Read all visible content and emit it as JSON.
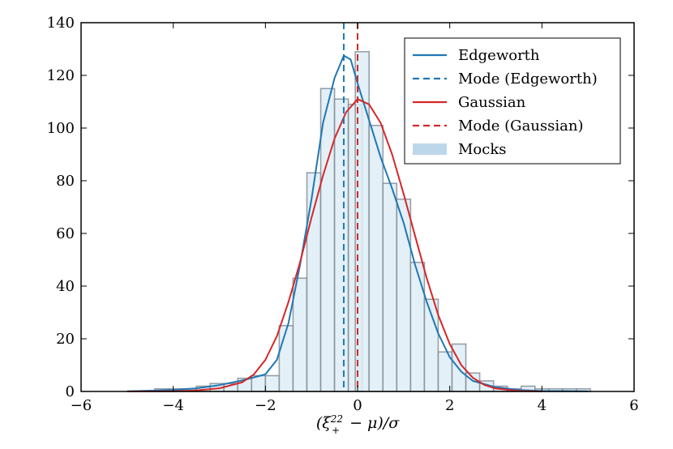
{
  "chart_data": {
    "type": "histogram",
    "title": "",
    "xlabel": "(ξ",
    "xlabel_sup": "22",
    "xlabel_sub": "+",
    "xlabel_tail": " − μ)/σ",
    "ylabel": "",
    "xlim": [
      -6,
      6
    ],
    "ylim": [
      0,
      140
    ],
    "xticks": [
      -6,
      -4,
      -2,
      0,
      2,
      4,
      6
    ],
    "xtick_labels": [
      "−6",
      "−4",
      "−2",
      "0",
      "2",
      "4",
      "6"
    ],
    "yticks": [
      0,
      20,
      40,
      60,
      80,
      100,
      120,
      140
    ],
    "ytick_labels": [
      "0",
      "20",
      "40",
      "60",
      "80",
      "100",
      "120",
      "140"
    ],
    "bin_width": 0.3,
    "bins": [
      {
        "x0": -4.4,
        "count": 1
      },
      {
        "x0": -4.1,
        "count": 1
      },
      {
        "x0": -3.8,
        "count": 1
      },
      {
        "x0": -3.5,
        "count": 2
      },
      {
        "x0": -3.2,
        "count": 3
      },
      {
        "x0": -2.9,
        "count": 3
      },
      {
        "x0": -2.6,
        "count": 5
      },
      {
        "x0": -2.3,
        "count": 6
      },
      {
        "x0": -2.0,
        "count": 6
      },
      {
        "x0": -1.7,
        "count": 25
      },
      {
        "x0": -1.4,
        "count": 43
      },
      {
        "x0": -1.1,
        "count": 83
      },
      {
        "x0": -0.8,
        "count": 115
      },
      {
        "x0": -0.5,
        "count": 111
      },
      {
        "x0": -0.2,
        "count": 109
      },
      {
        "x0": -0.05,
        "count": 129
      },
      {
        "x0": 0.25,
        "count": 101
      },
      {
        "x0": 0.55,
        "count": 79
      },
      {
        "x0": 0.85,
        "count": 73
      },
      {
        "x0": 1.15,
        "count": 49
      },
      {
        "x0": 1.45,
        "count": 35
      },
      {
        "x0": 1.75,
        "count": 15
      },
      {
        "x0": 2.05,
        "count": 18
      },
      {
        "x0": 2.35,
        "count": 7
      },
      {
        "x0": 2.65,
        "count": 4
      },
      {
        "x0": 2.95,
        "count": 2
      },
      {
        "x0": 3.25,
        "count": 1
      },
      {
        "x0": 3.55,
        "count": 2
      },
      {
        "x0": 3.85,
        "count": 1
      },
      {
        "x0": 4.15,
        "count": 1
      },
      {
        "x0": 4.45,
        "count": 1
      },
      {
        "x0": 4.75,
        "count": 1
      }
    ],
    "series": [
      {
        "name": "Edgeworth",
        "style": "solid",
        "color": "#1f77b4",
        "points": [
          [
            -5,
            0.1
          ],
          [
            -4.5,
            0.3
          ],
          [
            -4,
            0.6
          ],
          [
            -3.5,
            1.2
          ],
          [
            -3,
            2.4
          ],
          [
            -2.5,
            4.2
          ],
          [
            -2,
            6.5
          ],
          [
            -1.75,
            12
          ],
          [
            -1.5,
            26
          ],
          [
            -1.25,
            48
          ],
          [
            -1,
            73
          ],
          [
            -0.75,
            102
          ],
          [
            -0.5,
            119
          ],
          [
            -0.3,
            127.5
          ],
          [
            -0.15,
            126
          ],
          [
            0,
            117
          ],
          [
            0.25,
            103
          ],
          [
            0.5,
            89
          ],
          [
            0.75,
            77
          ],
          [
            1,
            64
          ],
          [
            1.25,
            48
          ],
          [
            1.5,
            34
          ],
          [
            1.75,
            22
          ],
          [
            2,
            13
          ],
          [
            2.25,
            7.5
          ],
          [
            2.5,
            4
          ],
          [
            3,
            1.6
          ],
          [
            3.5,
            0.6
          ],
          [
            4,
            0.2
          ],
          [
            5,
            0.05
          ]
        ]
      },
      {
        "name": "Mode (Edgeworth)",
        "style": "dashed",
        "color": "#1f77b4",
        "x": -0.3
      },
      {
        "name": "Gaussian",
        "style": "solid",
        "color": "#d62728",
        "points": [
          [
            -5,
            0
          ],
          [
            -4,
            0.1
          ],
          [
            -3.5,
            0.4
          ],
          [
            -3,
            1.2
          ],
          [
            -2.5,
            3.5
          ],
          [
            -2.25,
            6.5
          ],
          [
            -2,
            12
          ],
          [
            -1.75,
            21
          ],
          [
            -1.5,
            34
          ],
          [
            -1.25,
            49
          ],
          [
            -1,
            66
          ],
          [
            -0.75,
            82
          ],
          [
            -0.5,
            96
          ],
          [
            -0.25,
            106
          ],
          [
            0,
            111
          ],
          [
            0.25,
            109
          ],
          [
            0.5,
            102
          ],
          [
            0.75,
            90
          ],
          [
            1,
            75
          ],
          [
            1.25,
            59
          ],
          [
            1.5,
            43
          ],
          [
            1.75,
            29
          ],
          [
            2,
            18
          ],
          [
            2.25,
            10
          ],
          [
            2.5,
            5.2
          ],
          [
            2.75,
            2.5
          ],
          [
            3,
            1.1
          ],
          [
            3.5,
            0.2
          ],
          [
            4,
            0
          ]
        ]
      },
      {
        "name": "Mode (Gaussian)",
        "style": "dashed",
        "color": "#d62728",
        "x": 0.0
      }
    ],
    "legend": {
      "position": "top-right",
      "entries": [
        {
          "label": "Edgeworth",
          "kind": "line",
          "color": "#1f77b4",
          "dash": false
        },
        {
          "label": "Mode (Edgeworth)",
          "kind": "line",
          "color": "#1f77b4",
          "dash": true
        },
        {
          "label": "Gaussian",
          "kind": "line",
          "color": "#d62728",
          "dash": false
        },
        {
          "label": "Mode (Gaussian)",
          "kind": "line",
          "color": "#d62728",
          "dash": true
        },
        {
          "label": "Mocks",
          "kind": "patch",
          "color": "#bcd7ea"
        }
      ]
    },
    "colors": {
      "bar_fill": "#deedf6",
      "bar_edge": "#7f8a93",
      "patch": "#bcd7ea"
    }
  }
}
